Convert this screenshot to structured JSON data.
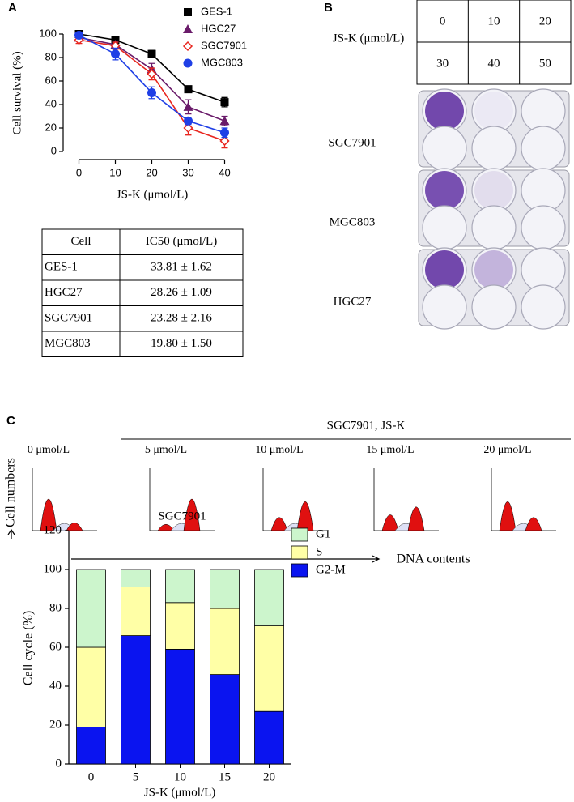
{
  "panel_labels": [
    "A",
    "B",
    "C"
  ],
  "chart_data": [
    {
      "type": "line",
      "x_label": "JS-K (μmol/L)",
      "y_label": "Cell survival (%)",
      "x": [
        0,
        10,
        20,
        30,
        40
      ],
      "xlim": [
        -5,
        45
      ],
      "xticks": [
        0,
        10,
        20,
        30,
        40
      ],
      "ylim": [
        0,
        100
      ],
      "yticks": [
        0,
        20,
        40,
        60,
        80,
        100
      ],
      "series": [
        {
          "name": "GES-1",
          "color": "#000000",
          "marker": "square",
          "values": [
            100,
            95,
            83,
            53,
            42
          ],
          "errors": [
            2,
            3,
            3,
            2,
            4
          ]
        },
        {
          "name": "HGC27",
          "color": "#6a1b6a",
          "marker": "triangle",
          "values": [
            97,
            91,
            70,
            38,
            26
          ],
          "errors": [
            2,
            3,
            5,
            6,
            4
          ]
        },
        {
          "name": "SGC7901",
          "color": "#e8261f",
          "marker": "open-diamond",
          "values": [
            95,
            90,
            66,
            20,
            9
          ],
          "errors": [
            3,
            3,
            5,
            6,
            6
          ]
        },
        {
          "name": "MGC803",
          "color": "#1f3fe6",
          "marker": "circle",
          "values": [
            99,
            83,
            50,
            26,
            16
          ],
          "errors": [
            2,
            5,
            5,
            3,
            4
          ]
        }
      ]
    },
    {
      "type": "stacked_bar",
      "title": "SGC7901",
      "x_label": "JS-K (μmol/L)",
      "y_label": "Cell cycle (%)",
      "categories": [
        "0",
        "5",
        "10",
        "15",
        "20"
      ],
      "ylim": [
        0,
        120
      ],
      "yticks": [
        0,
        20,
        40,
        60,
        80,
        100,
        120
      ],
      "series": [
        {
          "name": "G2-M",
          "color": "#0a14f0",
          "values": [
            19,
            66,
            59,
            46,
            27
          ]
        },
        {
          "name": "S",
          "color": "#ffffa6",
          "values": [
            41,
            25,
            24,
            34,
            44
          ]
        },
        {
          "name": "G1",
          "color": "#ccf5cc",
          "values": [
            40,
            9,
            17,
            20,
            29
          ]
        }
      ]
    }
  ],
  "table": {
    "header": [
      "Cell",
      "IC50 (μmol/L)"
    ],
    "rows": [
      [
        "GES-1",
        "33.81 ± 1.62"
      ],
      [
        "HGC27",
        "28.26 ± 1.09"
      ],
      [
        "SGC7901",
        "23.28 ± 2.16"
      ],
      [
        "MGC803",
        "19.80 ± 1.50"
      ]
    ]
  },
  "panel_b": {
    "dose_label": "JS-K (μmol/L)",
    "doses": [
      "0",
      "10",
      "20",
      "30",
      "40",
      "50"
    ],
    "cell_lines": [
      "SGC7901",
      "MGC803",
      "HGC27"
    ]
  },
  "panel_c": {
    "title": "SGC7901, JS-K",
    "doses": [
      "0 μmol/L",
      "5 μmol/L",
      "10 μmol/L",
      "15 μmol/L",
      "20 μmol/L"
    ],
    "y_axis_label": "Cell numbers",
    "x_axis_label": "DNA contents"
  }
}
